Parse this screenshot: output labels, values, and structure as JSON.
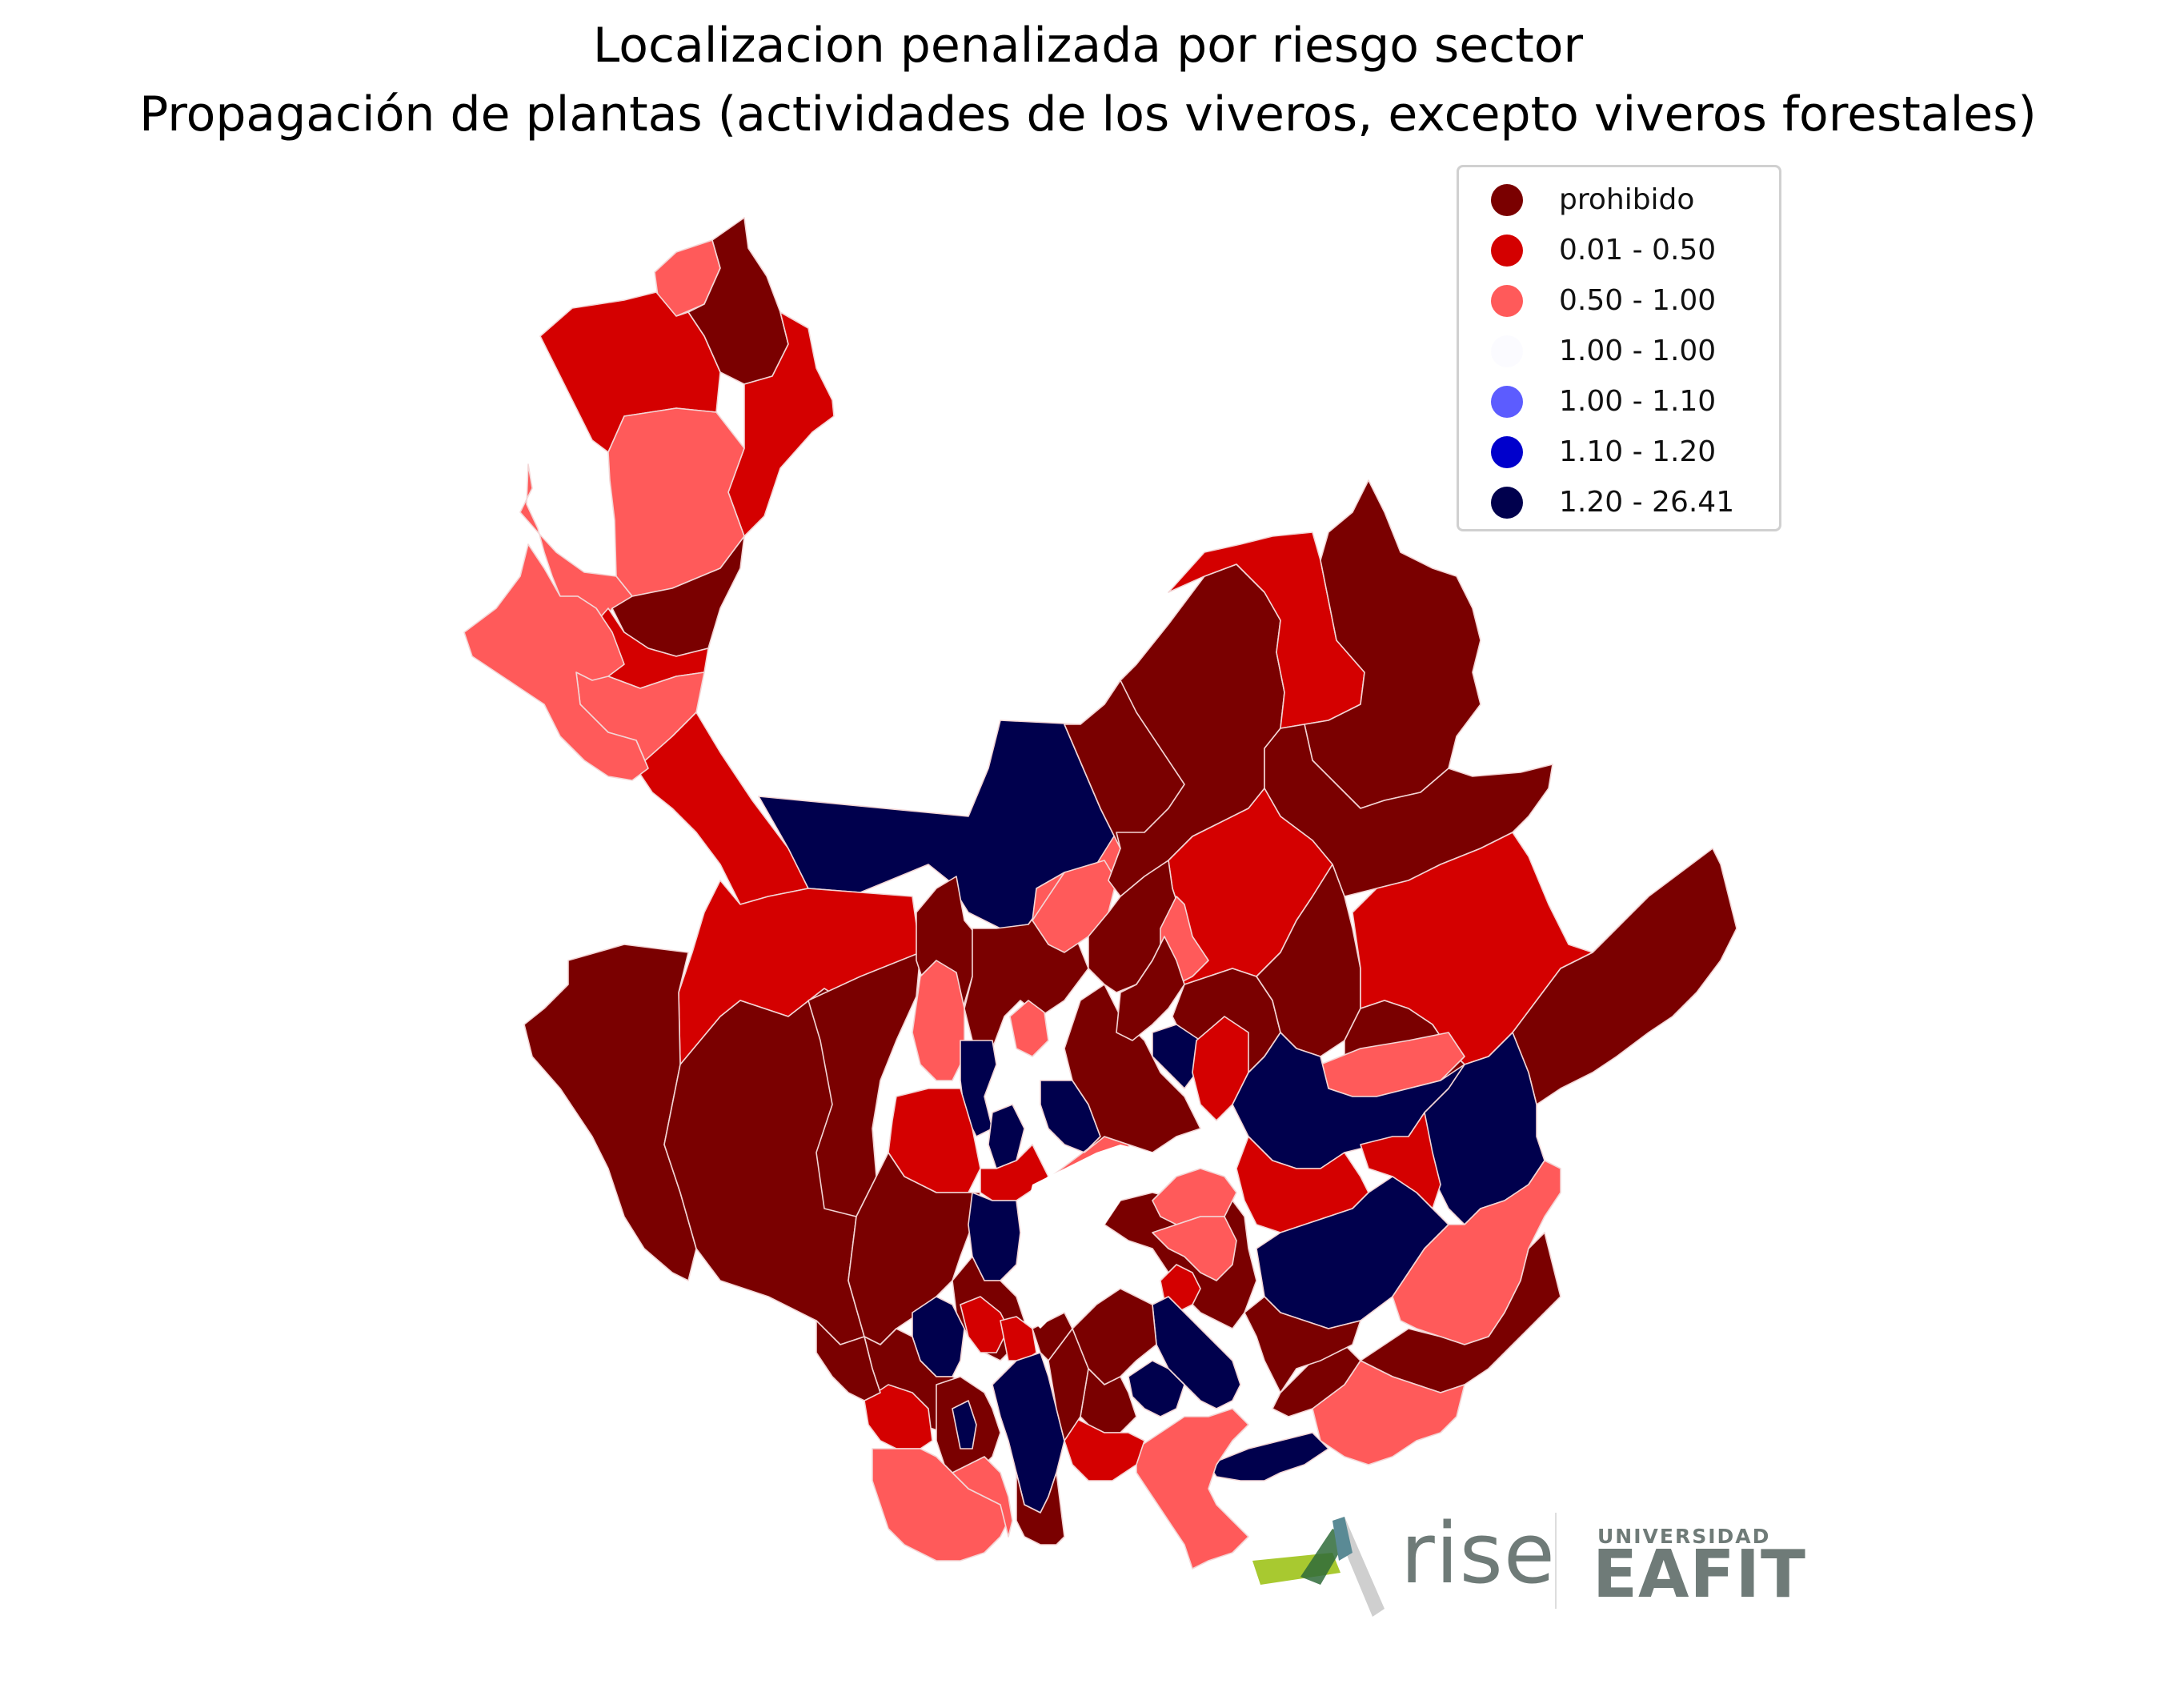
{
  "title": {
    "line1": "Localizacion penalizada por riesgo sector",
    "line2": "Propagación de plantas (actividades de los viveros, excepto viveros forestales)"
  },
  "legend": {
    "entries": [
      {
        "label": "prohibido",
        "color": "#7a0000"
      },
      {
        "label": "0.01 - 0.50",
        "color": "#d40000"
      },
      {
        "label": "0.50 - 1.00",
        "color": "#ff5a5a"
      },
      {
        "label": "1.00 - 1.00",
        "color": "#fbfbff"
      },
      {
        "label": "1.00 - 1.10",
        "color": "#5c5cff"
      },
      {
        "label": "1.10 - 1.20",
        "color": "#0000cc"
      },
      {
        "label": "1.20 - 26.41",
        "color": "#00004d"
      }
    ]
  },
  "logos": {
    "rise": "rise",
    "eafit_top": "UNIVERSIDAD",
    "eafit_main": "EAFIT"
  }
}
